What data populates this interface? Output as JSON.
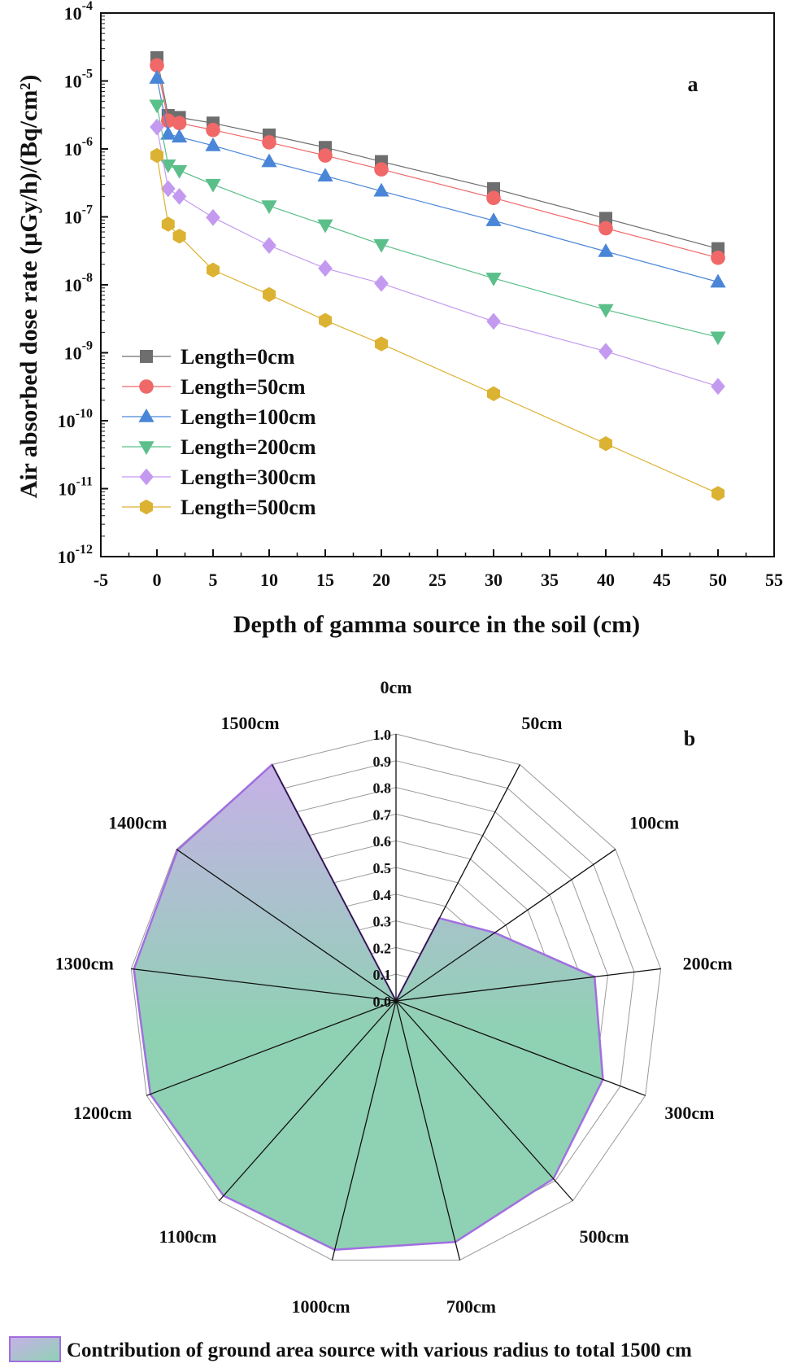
{
  "chart_data": [
    {
      "type": "line",
      "panel": "a",
      "title": "",
      "xlabel": "Depth of gamma source in the soil (cm)",
      "ylabel": "Air absorbed dose rate (µGy/h)/(Bq/cm²)",
      "yscale": "log",
      "xlim": [
        -5,
        55
      ],
      "ylim_exp": [
        -12,
        -4
      ],
      "x_ticks": [
        "-5",
        "0",
        "5",
        "10",
        "15",
        "20",
        "25",
        "30",
        "35",
        "40",
        "45",
        "50",
        "55"
      ],
      "y_ticks": [
        {
          "base": "10",
          "exp": "-12"
        },
        {
          "base": "10",
          "exp": "-11"
        },
        {
          "base": "10",
          "exp": "-10"
        },
        {
          "base": "10",
          "exp": "-9"
        },
        {
          "base": "10",
          "exp": "-8"
        },
        {
          "base": "10",
          "exp": "-7"
        },
        {
          "base": "10",
          "exp": "-6"
        },
        {
          "base": "10",
          "exp": "-5"
        },
        {
          "base": "10",
          "exp": "-4"
        }
      ],
      "legend_position": "bottom-left",
      "x": [
        0,
        1,
        2,
        5,
        10,
        15,
        20,
        30,
        40,
        50
      ],
      "series": [
        {
          "name": "Length=0cm",
          "marker": "square",
          "color": "#6e6e6e",
          "values": [
            2.2e-05,
            3.1e-06,
            2.9e-06,
            2.4e-06,
            1.6e-06,
            1.05e-06,
            6.5e-07,
            2.6e-07,
            9.5e-08,
            3.4e-08
          ]
        },
        {
          "name": "Length=50cm",
          "marker": "circle",
          "color": "#f06868",
          "values": [
            1.7e-05,
            2.6e-06,
            2.4e-06,
            1.9e-06,
            1.25e-06,
            8e-07,
            5e-07,
            1.9e-07,
            6.8e-08,
            2.5e-08
          ]
        },
        {
          "name": "Length=100cm",
          "marker": "triangle-up",
          "color": "#4a86d8",
          "values": [
            1.1e-05,
            1.65e-06,
            1.5e-06,
            1.12e-06,
            6.5e-07,
            4e-07,
            2.4e-07,
            8.8e-08,
            3.1e-08,
            1.1e-08
          ]
        },
        {
          "name": "Length=200cm",
          "marker": "triangle-down",
          "color": "#5bbf8a",
          "values": [
            4.4e-06,
            5.8e-07,
            4.8e-07,
            3e-07,
            1.45e-07,
            7.6e-08,
            3.9e-08,
            1.25e-08,
            4.3e-09,
            1.7e-09
          ]
        },
        {
          "name": "Length=300cm",
          "marker": "diamond",
          "color": "#c39af0",
          "values": [
            2.1e-06,
            2.6e-07,
            2e-07,
            9.8e-08,
            3.8e-08,
            1.75e-08,
            1.05e-08,
            2.9e-09,
            1.05e-09,
            3.2e-10
          ]
        },
        {
          "name": "Length=500cm",
          "marker": "hexagon",
          "color": "#dcb232",
          "values": [
            8e-07,
            7.8e-08,
            5.2e-08,
            1.65e-08,
            7.2e-09,
            3e-09,
            1.35e-09,
            2.5e-10,
            4.6e-11,
            8.5e-12
          ]
        }
      ]
    },
    {
      "type": "radar",
      "panel": "b",
      "categories": [
        "0cm",
        "50cm",
        "100cm",
        "200cm",
        "300cm",
        "500cm",
        "700cm",
        "1000cm",
        "1100cm",
        "1200cm",
        "1300cm",
        "1400cm",
        "1500cm"
      ],
      "r_ticks": [
        "0.0",
        "0.1",
        "0.2",
        "0.3",
        "0.4",
        "0.5",
        "0.6",
        "0.7",
        "0.8",
        "0.9",
        "1.0"
      ],
      "rlim": [
        0,
        1.0
      ],
      "series": [
        {
          "name": "Contribution of ground area source with various radius to total 1500 cm",
          "values": [
            0.0,
            0.35,
            0.45,
            0.75,
            0.83,
            0.89,
            0.93,
            0.96,
            0.975,
            0.985,
            0.99,
            0.995,
            1.0
          ],
          "line_color": "#a16fe0",
          "fill_color_top": "#c7b1e8",
          "fill_color_bottom": "#8fd1b3"
        }
      ]
    }
  ]
}
